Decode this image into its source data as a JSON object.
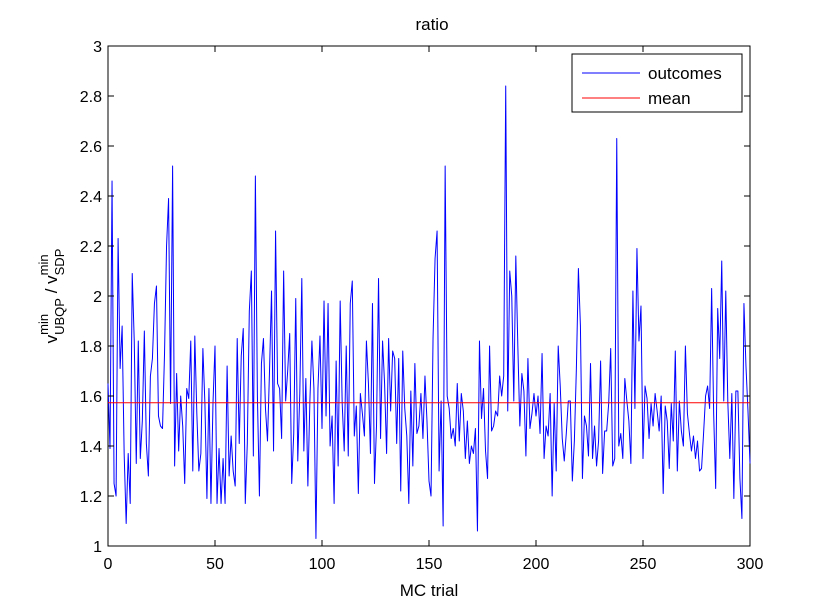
{
  "chart_data": {
    "type": "line",
    "title": "ratio",
    "xlabel": "MC trial",
    "ylabel": {
      "base1": "v",
      "sup1": "min",
      "sub1": "UBQP",
      "slash": " / ",
      "base2": "v",
      "sup2": "min",
      "sub2": "SDP"
    },
    "xlim": [
      0,
      300
    ],
    "ylim": [
      1,
      3
    ],
    "xticks": [
      "0",
      "50",
      "100",
      "150",
      "200",
      "250",
      "300"
    ],
    "yticks": [
      "1",
      "1.2",
      "1.4",
      "1.6",
      "1.8",
      "2",
      "2.2",
      "2.4",
      "2.6",
      "2.8",
      "3"
    ],
    "xtick_values": [
      0,
      50,
      100,
      150,
      200,
      250,
      300
    ],
    "ytick_values": [
      1,
      1.2,
      1.4,
      1.6,
      1.8,
      2,
      2.2,
      2.4,
      2.6,
      2.8,
      3
    ],
    "grid": false,
    "legend": "top-right",
    "series": [
      {
        "name": "outcomes",
        "color": "#0000ff",
        "values": [
          1.65,
          1.39,
          2.46,
          1.25,
          1.2,
          2.23,
          1.71,
          1.88,
          1.37,
          1.09,
          1.37,
          1.17,
          2.09,
          1.82,
          1.33,
          1.82,
          1.35,
          1.5,
          1.86,
          1.41,
          1.28,
          1.68,
          1.75,
          1.97,
          2.04,
          1.52,
          1.48,
          1.47,
          1.77,
          2.2,
          2.39,
          1.57,
          2.52,
          1.32,
          1.69,
          1.38,
          1.6,
          1.48,
          1.25,
          1.63,
          1.59,
          1.82,
          1.3,
          1.84,
          1.53,
          1.3,
          1.37,
          1.79,
          1.57,
          1.19,
          1.63,
          1.17,
          1.57,
          1.8,
          1.17,
          1.39,
          1.17,
          1.35,
          1.17,
          1.72,
          1.28,
          1.44,
          1.3,
          1.24,
          1.83,
          1.41,
          1.76,
          1.87,
          1.17,
          1.41,
          1.94,
          2.1,
          1.36,
          2.48,
          1.6,
          1.2,
          1.73,
          1.83,
          1.55,
          1.42,
          1.7,
          2.02,
          1.38,
          2.26,
          1.65,
          1.63,
          1.43,
          2.1,
          1.58,
          1.7,
          1.85,
          1.25,
          1.45,
          1.99,
          1.34,
          1.61,
          2.07,
          1.38,
          1.67,
          1.24,
          1.58,
          1.82,
          1.63,
          1.03,
          1.63,
          1.84,
          1.47,
          1.98,
          1.52,
          1.97,
          1.4,
          1.52,
          1.17,
          1.74,
          1.32,
          1.98,
          1.57,
          1.38,
          1.8,
          1.36,
          1.97,
          2.06,
          1.44,
          1.56,
          1.21,
          1.61,
          1.53,
          1.44,
          1.82,
          1.65,
          1.37,
          1.97,
          1.25,
          1.48,
          2.07,
          1.43,
          1.82,
          1.65,
          1.37,
          1.83,
          1.54,
          1.78,
          1.75,
          1.41,
          1.75,
          1.22,
          1.78,
          1.55,
          1.44,
          1.17,
          1.62,
          1.32,
          1.73,
          1.45,
          1.48,
          1.61,
          1.43,
          1.68,
          1.5,
          1.26,
          1.2,
          1.83,
          2.15,
          2.26,
          1.3,
          1.58,
          1.08,
          2.52,
          1.6,
          1.55,
          1.43,
          1.47,
          1.4,
          1.65,
          1.42,
          1.61,
          1.54,
          1.35,
          1.5,
          1.33,
          1.4,
          1.37,
          1.47,
          1.06,
          1.82,
          1.51,
          1.63,
          1.38,
          1.27,
          1.8,
          1.46,
          1.48,
          1.54,
          1.52,
          1.68,
          1.6,
          1.68,
          2.84,
          1.54,
          2.1,
          2.0,
          1.58,
          2.16,
          1.8,
          1.48,
          1.69,
          1.62,
          1.36,
          1.75,
          1.47,
          1.53,
          1.61,
          1.52,
          1.6,
          1.45,
          1.77,
          1.35,
          1.48,
          1.44,
          1.61,
          1.2,
          1.57,
          1.3,
          1.8,
          1.64,
          1.43,
          1.34,
          1.45,
          1.58,
          1.58,
          1.26,
          1.42,
          1.71,
          2.11,
          1.88,
          1.27,
          1.52,
          1.48,
          1.36,
          1.73,
          1.35,
          1.48,
          1.32,
          1.42,
          1.74,
          1.29,
          1.46,
          1.46,
          1.57,
          1.79,
          1.32,
          1.35,
          2.63,
          1.4,
          1.45,
          1.35,
          1.67,
          1.58,
          1.5,
          1.33,
          2.02,
          1.55,
          2.19,
          1.82,
          1.96,
          1.35,
          1.64,
          1.59,
          1.43,
          1.57,
          1.48,
          1.61,
          1.54,
          1.46,
          1.6,
          1.21,
          1.56,
          1.5,
          1.31,
          1.57,
          1.42,
          1.78,
          1.3,
          1.58,
          1.46,
          1.4,
          1.8,
          1.53,
          1.45,
          1.38,
          1.44,
          1.35,
          1.42,
          1.3,
          1.31,
          1.45,
          1.6,
          1.64,
          1.55,
          2.03,
          1.53,
          1.23,
          1.95,
          1.75,
          2.14,
          1.58,
          2.02,
          1.58,
          1.35,
          1.61,
          1.19,
          1.62,
          1.62,
          1.27,
          1.11,
          1.97,
          1.72,
          1.54,
          1.33
        ]
      },
      {
        "name": "mean",
        "color": "#ff0000",
        "values": [
          1.573
        ]
      }
    ]
  }
}
